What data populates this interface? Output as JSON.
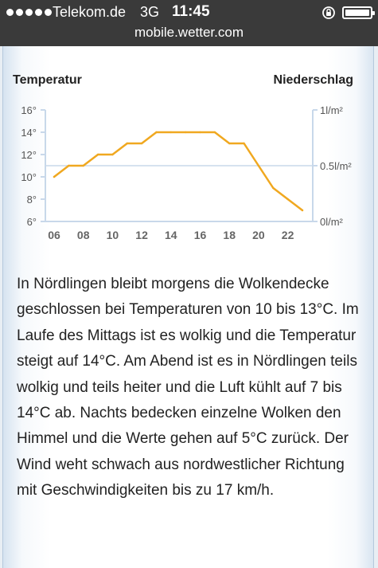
{
  "status_bar": {
    "signal_dots": 5,
    "carrier": "Telekom.de",
    "network": "3G",
    "time": "11:45",
    "icons": [
      "rotation-lock-icon",
      "battery-icon"
    ]
  },
  "browser": {
    "url": "mobile.wetter.com"
  },
  "chart_labels": {
    "left": "Temperatur",
    "right": "Niederschlag"
  },
  "chart_data": {
    "type": "line",
    "x": [
      "06",
      "07",
      "08",
      "09",
      "10",
      "11",
      "12",
      "13",
      "14",
      "15",
      "16",
      "17",
      "18",
      "19",
      "20",
      "21",
      "22",
      "23"
    ],
    "x_tick_labels": [
      "06",
      "08",
      "10",
      "12",
      "14",
      "16",
      "18",
      "20",
      "22"
    ],
    "series": [
      {
        "values": [
          10,
          11,
          11,
          12,
          12,
          13,
          13,
          14,
          14,
          14,
          14,
          14,
          13,
          13,
          11,
          9,
          8,
          7
        ]
      }
    ],
    "y_left": {
      "ticks": [
        "16°",
        "14°",
        "12°",
        "10°",
        "8°",
        "6°"
      ],
      "ylim": [
        6,
        16
      ]
    },
    "y_right": {
      "ticks": [
        "1l/m²",
        "0.5l/m²",
        "0l/m²"
      ],
      "ylim": [
        0,
        1
      ]
    },
    "precipitation": [],
    "grid": true,
    "colors": {
      "line": "#f0a820",
      "axis": "#c8d8ea",
      "tick_text": "#555555"
    }
  },
  "forecast": {
    "text": "In Nördlingen bleibt morgens die Wolkendecke geschlossen bei Temperaturen von 10 bis 13°C. Im Laufe des Mittags ist es wolkig und die Temperatur steigt auf 14°C. Am Abend ist es in Nördlingen teils wolkig und teils heiter und die Luft kühlt auf 7 bis 14°C ab. Nachts bedecken einzelne Wolken den Himmel und die Werte gehen auf 5°C zurück. Der Wind weht schwach aus nordwestlicher Richtung mit Geschwindigkeiten bis zu 17 km/h."
  }
}
